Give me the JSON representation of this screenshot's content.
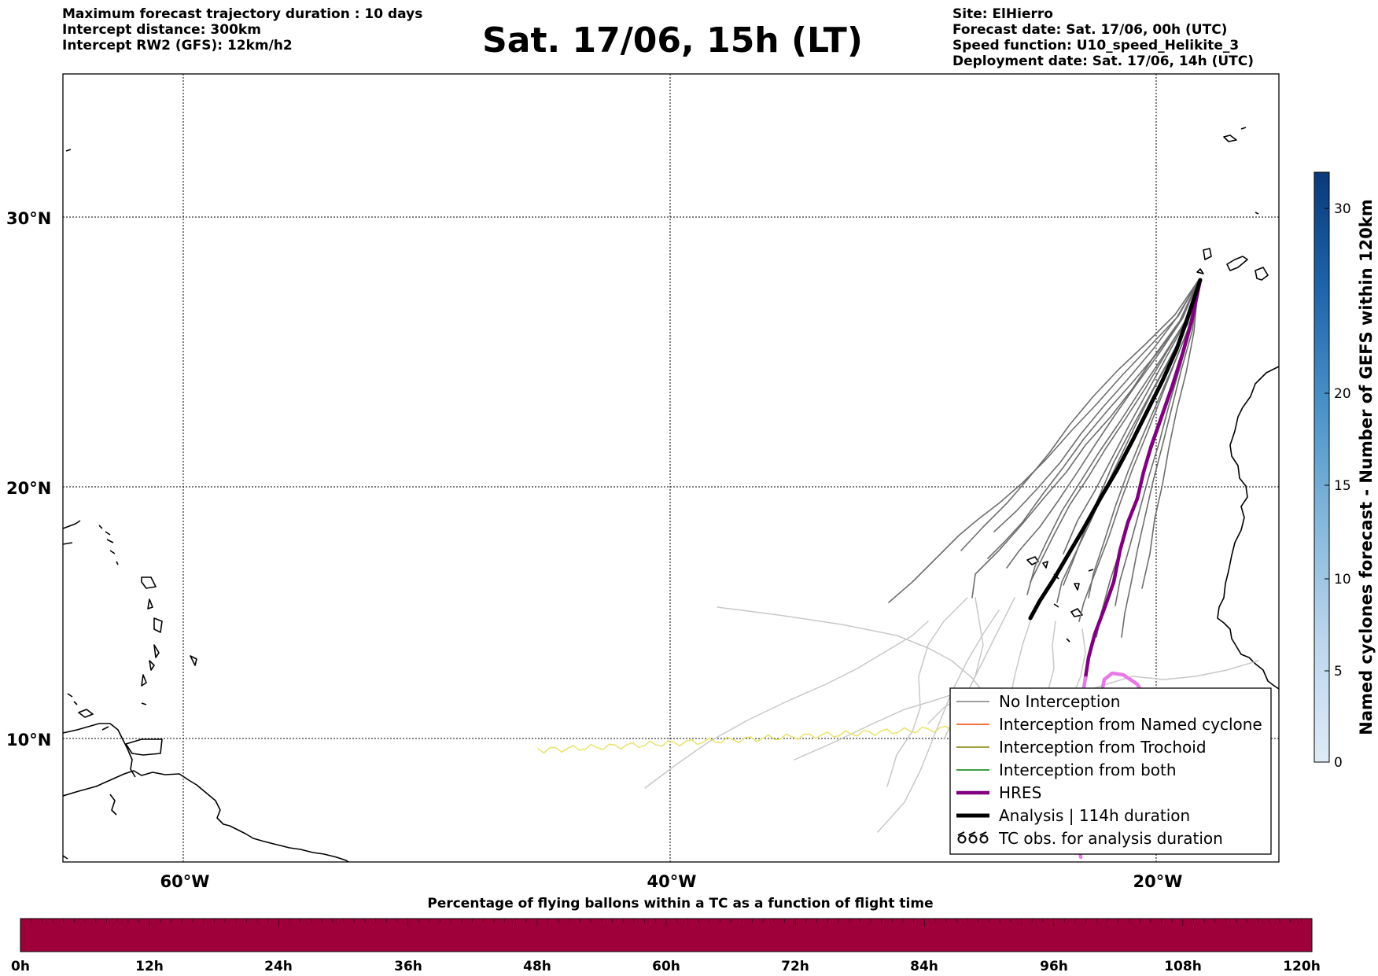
{
  "header": {
    "left": [
      "Maximum forecast trajectory duration : 10 days",
      "Intercept distance: 300km",
      "Intercept RW2 (GFS):  12km/h2"
    ],
    "title": "Sat. 17/06, 15h (LT)",
    "right": [
      "Site: ElHierro",
      "Forecast date: Sat. 17/06, 00h (UTC)",
      "Speed function: U10_speed_Helikite_3",
      "Deployment date: Sat. 17/06, 14h (UTC)"
    ]
  },
  "map": {
    "lat_labels": [
      "30°N",
      "20°N",
      "10°N"
    ],
    "lon_labels": [
      "60°W",
      "40°W",
      "20°W"
    ]
  },
  "legend": {
    "items": [
      {
        "label": "No Interception",
        "color": "#808080",
        "icon": "line"
      },
      {
        "label": "Interception from Named cyclone",
        "color": "#ff4500",
        "icon": "line"
      },
      {
        "label": "Interception from Trochoid",
        "color": "#808000",
        "icon": "line"
      },
      {
        "label": "Interception from both",
        "color": "#008000",
        "icon": "line"
      },
      {
        "label": "HRES",
        "color": "#800080",
        "icon": "thick-line"
      },
      {
        "label": "Analysis | 114h duration",
        "color": "#000000",
        "icon": "thick-line"
      },
      {
        "label": "TC obs. for analysis duration",
        "color": "#000000",
        "icon": "cyclone-symbols"
      }
    ]
  },
  "colorbar": {
    "label": "Named cyclones forecast - Number of GEFS within 120km",
    "ticks": [
      "0",
      "5",
      "10",
      "15",
      "20",
      "30"
    ]
  },
  "percent_bar": {
    "title": "Percentage of flying ballons within a TC as a function of flight time",
    "ticks": [
      "0h",
      "12h",
      "24h",
      "36h",
      "48h",
      "60h",
      "72h",
      "84h",
      "96h",
      "108h",
      "120h"
    ],
    "fill_color": "#a0003a"
  }
}
